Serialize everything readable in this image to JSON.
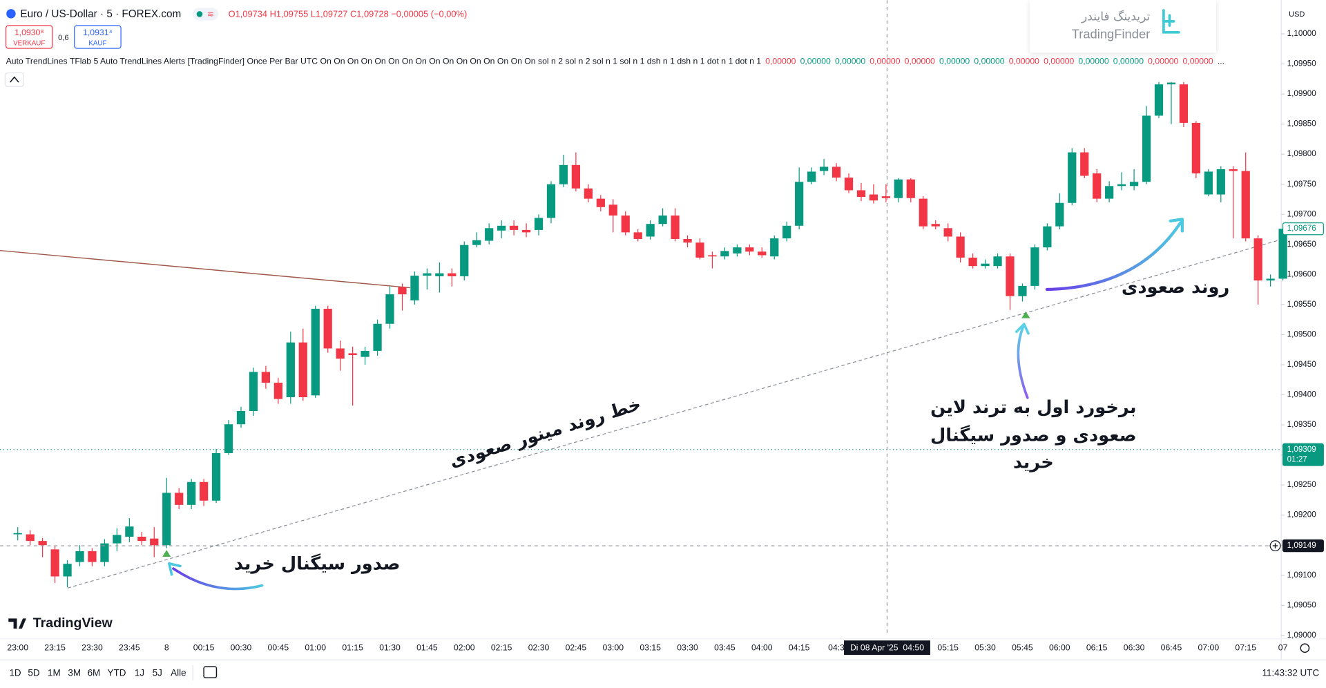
{
  "header": {
    "symbol": "Euro / US-Dollar · 5 · FOREX.com",
    "ohlc": "O1,09734 H1,09755 L1,09727 C1,09728 −0,00005 (−0,00%)",
    "sell_price": "1,0930⁸",
    "sell_label": "VERKAUF",
    "spread": "0,6",
    "buy_price": "1,0931⁴",
    "buy_label": "KAUF",
    "currency": "USD"
  },
  "indicator": {
    "label": "Auto TrendLines TFlab 5 Auto TrendLines Alerts [TradingFinder] Once Per Bar UTC On On On On On On On On On On On On On On On On sol n 2 sol n 2 sol n 1 sol n 1 dsh n 1 dsh n 1 dot n 1 dot n 1",
    "values": [
      "0,00000",
      "0,00000",
      "0,00000",
      "0,00000",
      "0,00000",
      "0,00000",
      "0,00000",
      "0,00000",
      "0,00000",
      "0,00000",
      "0,00000",
      "0,00000",
      "0,00000"
    ],
    "value_colors": [
      "#f23645",
      "#089981",
      "#089981",
      "#f23645",
      "#f23645",
      "#089981",
      "#089981",
      "#f23645",
      "#f23645",
      "#089981",
      "#089981",
      "#f23645",
      "#f23645"
    ],
    "ellipsis": "..."
  },
  "watermark": {
    "persian": "تریدینگ فایندر",
    "latin": "TradingFinder"
  },
  "logo": "TradingView",
  "crosshair_time": "Di 08 Apr '25  04:50",
  "annotations": {
    "buy_signal": "صدور سیگنال خرید",
    "minor_trendline": "خط روند مینور صعودی",
    "first_touch": [
      "برخورد اول به ترند لاین",
      "صعودی و صدور سیگنال",
      "خرید"
    ],
    "uptrend": "روند صعودی"
  },
  "toolbar": {
    "ranges": [
      "1D",
      "5D",
      "1M",
      "3M",
      "6M",
      "YTD",
      "1J",
      "5J",
      "Alle"
    ],
    "clock": "11:43:32 UTC"
  },
  "chart_data": {
    "type": "candlestick",
    "up_color": "#089981",
    "down_color": "#f23645",
    "grid": false,
    "categories": [
      "23:00",
      null,
      null,
      "23:15",
      null,
      null,
      "23:30",
      null,
      null,
      "23:45",
      null,
      null,
      "8",
      null,
      null,
      "00:15",
      null,
      null,
      "00:30",
      null,
      null,
      "00:45",
      null,
      null,
      "01:00",
      null,
      null,
      "01:15",
      null,
      null,
      "01:30",
      null,
      null,
      "01:45",
      null,
      null,
      "02:00",
      null,
      null,
      "02:15",
      null,
      null,
      "02:30",
      null,
      null,
      "02:45",
      null,
      null,
      "03:00",
      null,
      null,
      "03:15",
      null,
      null,
      "03:30",
      null,
      null,
      "03:45",
      null,
      null,
      "04:00",
      null,
      null,
      "04:15",
      null,
      null,
      "04:3",
      null,
      null,
      null,
      null,
      null,
      null,
      null,
      null,
      "05:15",
      null,
      null,
      "05:30",
      null,
      null,
      "05:45",
      null,
      null,
      "06:00",
      null,
      null,
      "06:15",
      null,
      null,
      "06:30",
      null,
      null,
      "06:45",
      null,
      null,
      "07:00",
      null,
      null,
      "07:15",
      null,
      null,
      "07"
    ],
    "open": [
      1.09168,
      1.09168,
      1.09157,
      1.09143,
      1.09098,
      1.09122,
      1.0914,
      1.09122,
      1.09153,
      1.09164,
      1.09164,
      1.09161,
      1.0915,
      1.09237,
      1.09217,
      1.09255,
      1.09224,
      1.09303,
      1.09351,
      1.09373,
      1.09438,
      1.0942,
      1.09396,
      1.09487,
      1.09399,
      1.09543,
      1.09477,
      1.09469,
      1.09463,
      1.09473,
      1.09518,
      1.09579,
      1.09557,
      1.09598,
      1.09597,
      1.09602,
      1.09597,
      1.09649,
      1.09656,
      1.09673,
      1.09681,
      1.09674,
      1.09674,
      1.09694,
      1.0975,
      1.09782,
      1.09743,
      1.09726,
      1.09716,
      1.09698,
      1.0967,
      1.09663,
      1.09684,
      1.09698,
      1.09659,
      1.09653,
      1.09632,
      1.0963,
      1.09635,
      1.09645,
      1.09638,
      1.0963,
      1.0966,
      1.09681,
      1.09754,
      1.09772,
      1.09779,
      1.09761,
      1.0974,
      1.09733,
      1.0973,
      1.09727,
      1.09758,
      1.09726,
      1.09684,
      1.09677,
      1.09663,
      1.09628,
      1.09614,
      1.09614,
      1.0963,
      1.09564,
      1.09581,
      1.09645,
      1.0968,
      1.09719,
      1.09803,
      1.09768,
      1.09726,
      1.09747,
      1.09747,
      1.09754,
      1.09864,
      1.09916,
      1.09916,
      1.09852,
      1.09733,
      1.09733,
      1.09775,
      1.09772,
      1.0966,
      1.0959,
      1.09593
    ],
    "high": [
      1.0918,
      1.09175,
      1.09162,
      1.0915,
      1.09125,
      1.0915,
      1.09145,
      1.0916,
      1.09178,
      1.09195,
      1.09172,
      1.0918,
      1.09262,
      1.09245,
      1.0926,
      1.0926,
      1.0931,
      1.09358,
      1.0938,
      1.09445,
      1.09448,
      1.09428,
      1.09505,
      1.0951,
      1.09548,
      1.09548,
      1.0949,
      1.0948,
      1.0948,
      1.09525,
      1.0958,
      1.09585,
      1.09605,
      1.0961,
      1.0962,
      1.0961,
      1.09655,
      1.0967,
      1.09685,
      1.0969,
      1.0969,
      1.09685,
      1.097,
      1.09755,
      1.09799,
      1.09803,
      1.0975,
      1.09732,
      1.09725,
      1.09705,
      1.09675,
      1.0969,
      1.0971,
      1.0971,
      1.09665,
      1.0966,
      1.09638,
      1.09645,
      1.0965,
      1.0965,
      1.09645,
      1.09665,
      1.09688,
      1.09778,
      1.09778,
      1.09792,
      1.09785,
      1.09768,
      1.09752,
      1.0975,
      1.0975,
      1.0976,
      1.0976,
      1.0973,
      1.0969,
      1.09685,
      1.0967,
      1.09635,
      1.09625,
      1.09635,
      1.09635,
      1.09585,
      1.0965,
      1.09685,
      1.09735,
      1.0981,
      1.0981,
      1.09775,
      1.09755,
      1.0977,
      1.09775,
      1.0988,
      1.0992,
      1.0992,
      1.0992,
      1.09855,
      1.09775,
      1.0978,
      1.0978,
      1.09803,
      1.09665,
      1.096,
      1.0968
    ],
    "low": [
      1.09158,
      1.0915,
      1.0913,
      1.09087,
      1.0908,
      1.09115,
      1.09115,
      1.09115,
      1.0914,
      1.09155,
      1.0915,
      1.0913,
      1.09145,
      1.0921,
      1.0921,
      1.09215,
      1.0922,
      1.093,
      1.09345,
      1.09365,
      1.0941,
      1.09385,
      1.09385,
      1.0939,
      1.09395,
      1.0947,
      1.0944,
      1.09382,
      1.0945,
      1.09465,
      1.0951,
      1.0954,
      1.0955,
      1.09575,
      1.0957,
      1.0958,
      1.0959,
      1.09645,
      1.0965,
      1.0966,
      1.09665,
      1.09662,
      1.09665,
      1.09685,
      1.09745,
      1.09738,
      1.0972,
      1.09705,
      1.0967,
      1.09665,
      1.09655,
      1.09658,
      1.0968,
      1.09655,
      1.09645,
      1.09625,
      1.0961,
      1.09625,
      1.0963,
      1.09632,
      1.09628,
      1.09625,
      1.09655,
      1.09675,
      1.0975,
      1.09765,
      1.09755,
      1.09735,
      1.09722,
      1.09718,
      1.0972,
      1.0972,
      1.0972,
      1.09675,
      1.09675,
      1.09655,
      1.0962,
      1.0961,
      1.0961,
      1.0961,
      1.09541,
      1.09555,
      1.09575,
      1.0964,
      1.09675,
      1.09715,
      1.0976,
      1.0972,
      1.0972,
      1.0974,
      1.0974,
      1.0975,
      1.0986,
      1.0985,
      1.09845,
      1.0976,
      1.0973,
      1.0972,
      1.0966,
      1.09655,
      1.0955,
      1.0958,
      1.0959
    ],
    "close": [
      1.0917,
      1.09157,
      1.0915,
      1.09098,
      1.09119,
      1.0914,
      1.09122,
      1.09153,
      1.09167,
      1.09181,
      1.09157,
      1.0915,
      1.09237,
      1.09217,
      1.09255,
      1.09224,
      1.09303,
      1.09351,
      1.09373,
      1.09438,
      1.0942,
      1.09393,
      1.09487,
      1.09396,
      1.09543,
      1.09477,
      1.0946,
      1.09466,
      1.09473,
      1.09518,
      1.09567,
      1.09567,
      1.09598,
      1.09602,
      1.09602,
      1.09597,
      1.09649,
      1.09657,
      1.09677,
      1.09681,
      1.09674,
      1.0967,
      1.09694,
      1.0975,
      1.09782,
      1.09743,
      1.09726,
      1.09712,
      1.09698,
      1.0967,
      1.09659,
      1.09684,
      1.09698,
      1.09659,
      1.09653,
      1.09628,
      1.0963,
      1.09639,
      1.09645,
      1.09638,
      1.09632,
      1.0966,
      1.09681,
      1.09754,
      1.09771,
      1.09779,
      1.09761,
      1.0974,
      1.09729,
      1.09723,
      1.09727,
      1.09758,
      1.09727,
      1.0968,
      1.0968,
      1.09663,
      1.09628,
      1.09614,
      1.09618,
      1.0963,
      1.09564,
      1.09581,
      1.09645,
      1.0968,
      1.09719,
      1.09803,
      1.09764,
      1.09726,
      1.09747,
      1.0975,
      1.09754,
      1.09864,
      1.09916,
      1.09919,
      1.09852,
      1.09768,
      1.09771,
      1.09775,
      1.09772,
      1.0966,
      1.0959,
      1.09593,
      1.09676
    ],
    "ylim": [
      1.09,
      1.10056
    ],
    "yticks": [
      {
        "value": 1.1,
        "label": "1,10000"
      },
      {
        "value": 1.0995,
        "label": "1,09950"
      },
      {
        "value": 1.099,
        "label": "1,09900"
      },
      {
        "value": 1.0985,
        "label": "1,09850"
      },
      {
        "value": 1.098,
        "label": "1,09800"
      },
      {
        "value": 1.0975,
        "label": "1,09750"
      },
      {
        "value": 1.097,
        "label": "1,09700"
      },
      {
        "value": 1.0965,
        "label": "1,09650"
      },
      {
        "value": 1.096,
        "label": "1,09600"
      },
      {
        "value": 1.0955,
        "label": "1,09550"
      },
      {
        "value": 1.095,
        "label": "1,09500"
      },
      {
        "value": 1.0945,
        "label": "1,09450"
      },
      {
        "value": 1.094,
        "label": "1,09400"
      },
      {
        "value": 1.0935,
        "label": "1,09350"
      },
      {
        "value": 1.093,
        "label": "1,09300"
      },
      {
        "value": 1.0925,
        "label": "1,09250"
      },
      {
        "value": 1.092,
        "label": "1,09200"
      },
      {
        "value": 1.0915,
        "label": "1,09150"
      },
      {
        "value": 1.091,
        "label": "1,09100"
      },
      {
        "value": 1.0905,
        "label": "1,09050"
      },
      {
        "value": 1.09,
        "label": "1,09000"
      }
    ],
    "price_tags": [
      {
        "value": 1.09676,
        "label": "1,09676"
      },
      {
        "value": 1.09309,
        "label": "1,09309",
        "countdown": "01:27"
      },
      {
        "value": 1.09149,
        "label": "1,09149"
      }
    ]
  }
}
